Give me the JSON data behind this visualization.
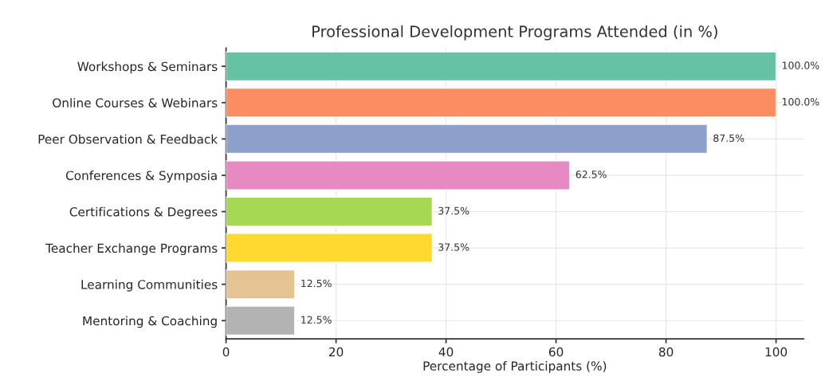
{
  "chart_data": {
    "type": "bar",
    "orientation": "horizontal",
    "title": "Professional Development Programs Attended (in %)",
    "xlabel": "Percentage of Participants (%)",
    "categories": [
      "Workshops & Seminars",
      "Online Courses & Webinars",
      "Peer Observation & Feedback",
      "Conferences & Symposia",
      "Certifications & Degrees",
      "Teacher Exchange Programs",
      "Learning Communities",
      "Mentoring & Coaching"
    ],
    "values": [
      100,
      100,
      87.5,
      62.5,
      37.5,
      37.5,
      12.5,
      12.5
    ],
    "colors": [
      "#66c2a5",
      "#fc8d62",
      "#8da0cb",
      "#e78ac3",
      "#a6d854",
      "#ffd92f",
      "#e5c494",
      "#b3b3b3"
    ],
    "value_labels": [
      "100.0%",
      "100.0%",
      "87.5%",
      "62.5%",
      "37.5%",
      "37.5%",
      "12.5%",
      "12.5%"
    ],
    "xlim": [
      0,
      105
    ],
    "xticks": [
      0,
      20,
      40,
      60,
      80,
      100
    ],
    "grid": true
  }
}
